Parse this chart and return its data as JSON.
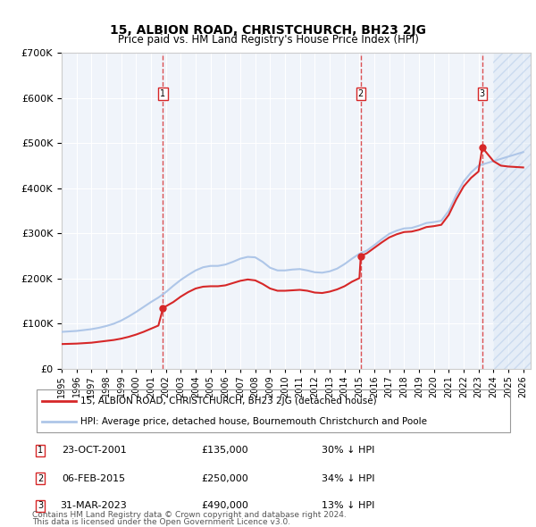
{
  "title": "15, ALBION ROAD, CHRISTCHURCH, BH23 2JG",
  "subtitle": "Price paid vs. HM Land Registry's House Price Index (HPI)",
  "hpi_label": "HPI: Average price, detached house, Bournemouth Christchurch and Poole",
  "property_label": "15, ALBION ROAD, CHRISTCHURCH, BH23 2JG (detached house)",
  "footer1": "Contains HM Land Registry data © Crown copyright and database right 2024.",
  "footer2": "This data is licensed under the Open Government Licence v3.0.",
  "ylim": [
    0,
    700000
  ],
  "yticks": [
    0,
    100000,
    200000,
    300000,
    400000,
    500000,
    600000,
    700000
  ],
  "xlim_start": 1995.0,
  "xlim_end": 2026.5,
  "sales": [
    {
      "date": 2001.81,
      "price": 135000,
      "label": "1",
      "text": "23-OCT-2001",
      "amount": "£135,000",
      "pct": "30% ↓ HPI"
    },
    {
      "date": 2015.09,
      "price": 250000,
      "label": "2",
      "text": "06-FEB-2015",
      "amount": "£250,000",
      "pct": "34% ↓ HPI"
    },
    {
      "date": 2023.25,
      "price": 490000,
      "label": "3",
      "text": "31-MAR-2023",
      "amount": "£490,000",
      "pct": "13% ↓ HPI"
    }
  ],
  "hpi_color": "#aec6e8",
  "property_color": "#d62728",
  "sale_marker_color": "#d62728",
  "dashed_line_color": "#d62728",
  "hpi_x": [
    1995.0,
    1995.5,
    1996.0,
    1996.5,
    1997.0,
    1997.5,
    1998.0,
    1998.5,
    1999.0,
    1999.5,
    2000.0,
    2000.5,
    2001.0,
    2001.5,
    2002.0,
    2002.5,
    2003.0,
    2003.5,
    2004.0,
    2004.5,
    2005.0,
    2005.5,
    2006.0,
    2006.5,
    2007.0,
    2007.5,
    2008.0,
    2008.5,
    2009.0,
    2009.5,
    2010.0,
    2010.5,
    2011.0,
    2011.5,
    2012.0,
    2012.5,
    2013.0,
    2013.5,
    2014.0,
    2014.5,
    2015.0,
    2015.5,
    2016.0,
    2016.5,
    2017.0,
    2017.5,
    2018.0,
    2018.5,
    2019.0,
    2019.5,
    2020.0,
    2020.5,
    2021.0,
    2021.5,
    2022.0,
    2022.5,
    2023.0,
    2023.5,
    2024.0,
    2024.5,
    2025.0,
    2025.5,
    2026.0
  ],
  "hpi_y": [
    82000,
    83000,
    84000,
    86000,
    88000,
    91000,
    95000,
    100000,
    107000,
    116000,
    126000,
    137000,
    148000,
    158000,
    170000,
    184000,
    197000,
    208000,
    218000,
    225000,
    228000,
    228000,
    231000,
    237000,
    244000,
    248000,
    247000,
    237000,
    224000,
    218000,
    218000,
    220000,
    221000,
    218000,
    214000,
    213000,
    216000,
    222000,
    232000,
    244000,
    255000,
    262000,
    274000,
    287000,
    299000,
    306000,
    311000,
    312000,
    317000,
    323000,
    325000,
    328000,
    350000,
    385000,
    415000,
    435000,
    450000,
    455000,
    460000,
    465000,
    470000,
    475000,
    480000
  ],
  "prop_x": [
    1995.0,
    1995.5,
    1996.0,
    1996.5,
    1997.0,
    1997.5,
    1998.0,
    1998.5,
    1999.0,
    1999.5,
    2000.0,
    2000.5,
    2001.0,
    2001.5,
    2001.81,
    2001.81,
    2002.5,
    2003.0,
    2003.5,
    2004.0,
    2004.5,
    2005.0,
    2005.5,
    2006.0,
    2006.5,
    2007.0,
    2007.5,
    2008.0,
    2008.5,
    2009.0,
    2009.5,
    2010.0,
    2010.5,
    2011.0,
    2011.5,
    2012.0,
    2012.5,
    2013.0,
    2013.5,
    2014.0,
    2014.5,
    2015.0,
    2015.09,
    2015.09,
    2015.5,
    2016.0,
    2016.5,
    2017.0,
    2017.5,
    2018.0,
    2018.5,
    2019.0,
    2019.5,
    2020.0,
    2020.5,
    2021.0,
    2021.5,
    2022.0,
    2022.5,
    2023.0,
    2023.25,
    2023.25,
    2023.5,
    2024.0,
    2024.5,
    2025.0,
    2025.5,
    2026.0
  ],
  "prop_y": [
    55000,
    55500,
    56000,
    57000,
    58000,
    60000,
    62000,
    64000,
    67000,
    71000,
    76000,
    82000,
    89000,
    96000,
    135000,
    135000,
    148000,
    160000,
    170000,
    178000,
    182000,
    183000,
    183000,
    185000,
    190000,
    195000,
    198000,
    196000,
    188000,
    178000,
    173000,
    173000,
    174000,
    175000,
    173000,
    169000,
    168000,
    171000,
    176000,
    183000,
    193000,
    201000,
    250000,
    250000,
    256000,
    268000,
    280000,
    291000,
    298000,
    303000,
    304000,
    308000,
    314000,
    316000,
    319000,
    341000,
    375000,
    404000,
    423000,
    437000,
    490000,
    490000,
    480000,
    460000,
    450000,
    448000,
    447000,
    446000
  ],
  "hatched_x_start": 2024.0,
  "bg_color": "#ffffff",
  "plot_bg_color": "#f0f4fa",
  "hatch_color": "#c8d8f0"
}
